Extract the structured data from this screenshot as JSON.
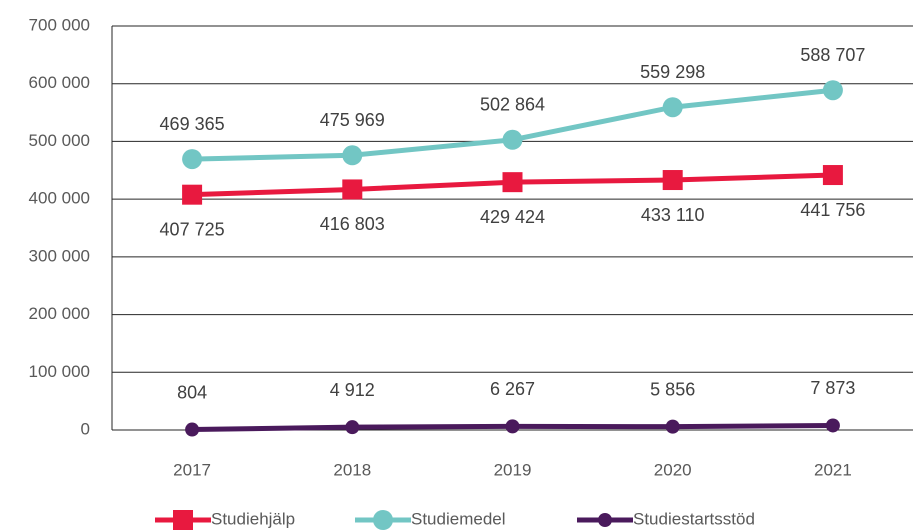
{
  "chart_data": {
    "type": "line",
    "categories": [
      "2017",
      "2018",
      "2019",
      "2020",
      "2021"
    ],
    "series": [
      {
        "name": "Studiehjälp",
        "color": "#e8193f",
        "marker": "square",
        "values": [
          407725,
          416803,
          429424,
          433110,
          441756
        ],
        "value_labels": [
          "407 725",
          "416 803",
          "429 424",
          "433 110",
          "441 756"
        ]
      },
      {
        "name": "Studiemedel",
        "color": "#72c6c4",
        "marker": "circle",
        "values": [
          469365,
          475969,
          502864,
          559298,
          588707
        ],
        "value_labels": [
          "469 365",
          "475 969",
          "502 864",
          "559 298",
          "588 707"
        ]
      },
      {
        "name": "Studiestartsstöd",
        "color": "#4a1a5c",
        "marker": "circle",
        "values": [
          804,
          4912,
          6267,
          5856,
          7873
        ],
        "value_labels": [
          "804",
          "4 912",
          "6 267",
          "5 856",
          "7 873"
        ]
      }
    ],
    "ylim": [
      0,
      700000
    ],
    "yticks": [
      0,
      {
        "value": 100000,
        "label": "100 000"
      },
      {
        "value": 200000,
        "label": "200 000"
      },
      {
        "value": 300000,
        "label": "300 000"
      },
      {
        "value": 400000,
        "label": "400 000"
      },
      {
        "value": 500000,
        "label": "500 000"
      },
      {
        "value": 600000,
        "label": "600 000"
      },
      {
        "value": 700000,
        "label": "700 000"
      }
    ],
    "grid": true,
    "legend": "bottom"
  }
}
